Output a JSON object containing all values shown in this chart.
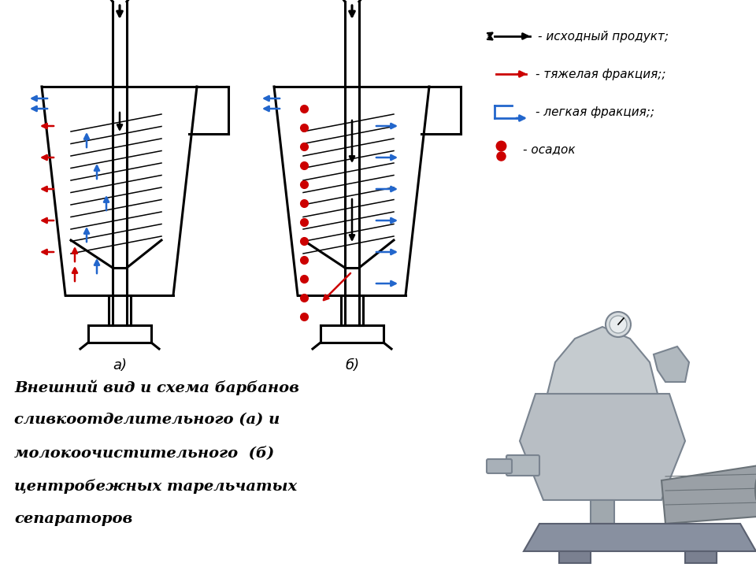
{
  "background_color": "#ffffff",
  "label_a": "а)",
  "label_b": "б)",
  "legend_items": [
    {
      "color": "#000000",
      "text": "- исходный продукт;"
    },
    {
      "color": "#cc0000",
      "text": "- тяжелая фракция;;"
    },
    {
      "color": "#2266cc",
      "text": "- легкая фракция;;"
    },
    {
      "color": "#cc0000",
      "text": "- осадок"
    }
  ],
  "caption_line1": "Внешний вид и схема барбанов",
  "caption_line2": "сливкоотделительного (а) и",
  "caption_line3": "молокоочистительного  (б)",
  "caption_line4": "центробежных тарельчатых",
  "caption_line5": "сепараторов",
  "font_size_caption": 14,
  "font_size_label": 13,
  "font_size_legend": 11
}
